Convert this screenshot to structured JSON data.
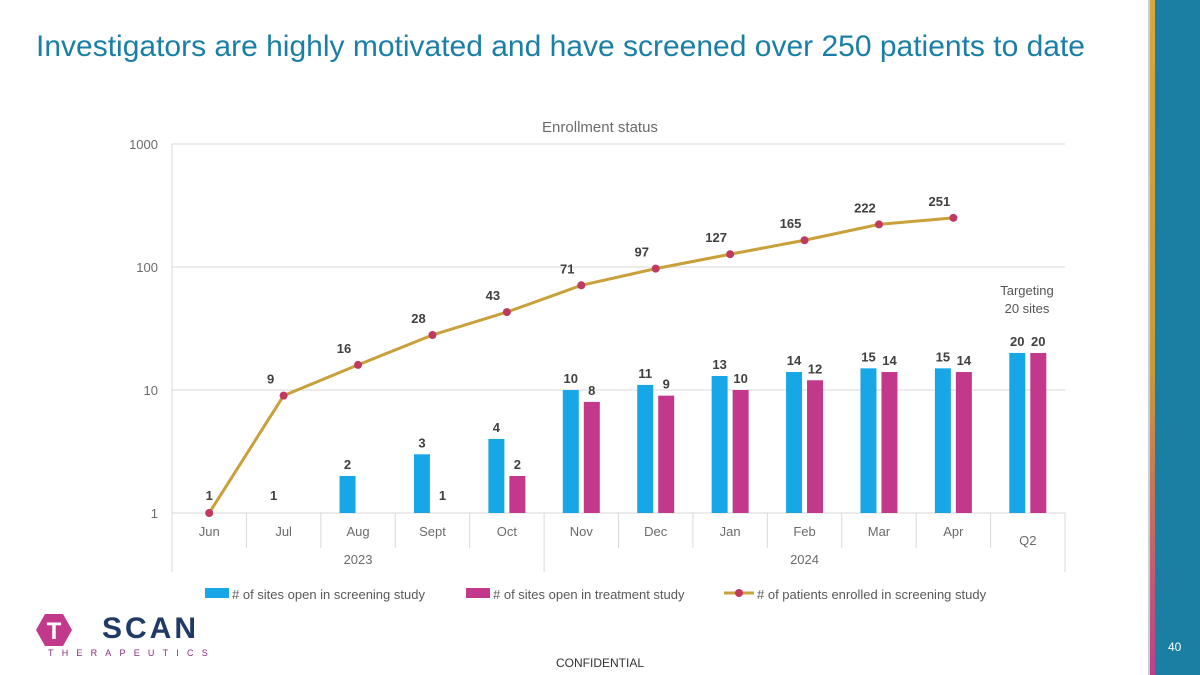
{
  "title": "Investigators are highly motivated and have screened over 250 patients to date",
  "footer": {
    "confidential": "CONFIDENTIAL",
    "page_number": "40"
  },
  "logo": {
    "word": "SCAN",
    "initial": "T",
    "tagline": "THERAPEUTICS"
  },
  "colors": {
    "title": "#1a7fa6",
    "sites_screening": "#17a7e6",
    "sites_treatment": "#c2398c",
    "patients": "#c9a03a",
    "patients_marker": "#c0395f"
  },
  "chart_data": {
    "type": "bar",
    "title": "Enrollment status",
    "yscale": "log",
    "ylim": [
      1,
      1000
    ],
    "yticks": [
      "1",
      "10",
      "100",
      "1000"
    ],
    "grid": true,
    "legend_position": "bottom",
    "categories": [
      "Jun",
      "Jul",
      "Aug",
      "Sept",
      "Oct",
      "Nov",
      "Dec",
      "Jan",
      "Feb",
      "Mar",
      "Apr",
      "Q2"
    ],
    "year_groups": [
      {
        "label": "2023",
        "from": 0,
        "to": 4
      },
      {
        "label": "2024",
        "from": 5,
        "to": 11
      }
    ],
    "series": [
      {
        "name": "# of sites open in screening study",
        "kind": "bar",
        "values": [
          1,
          1,
          2,
          3,
          4,
          10,
          11,
          13,
          14,
          15,
          15,
          20
        ]
      },
      {
        "name": "# of sites open in treatment study",
        "kind": "bar",
        "values": [
          null,
          null,
          null,
          1,
          2,
          8,
          9,
          10,
          12,
          14,
          14,
          20
        ]
      },
      {
        "name": "# of patients enrolled in screening study",
        "kind": "line",
        "values": [
          1,
          9,
          16,
          28,
          43,
          71,
          97,
          127,
          165,
          222,
          251,
          null
        ]
      }
    ],
    "annotation": [
      "Targeting",
      "20 sites"
    ]
  }
}
